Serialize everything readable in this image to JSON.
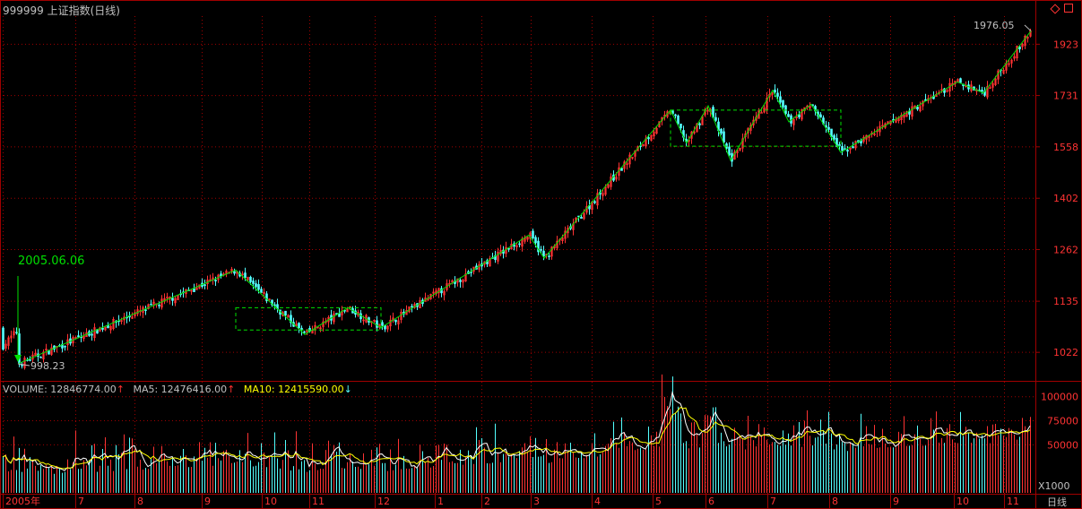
{
  "title": "999999 上证指数(日线)",
  "controls": [
    "diamond-icon",
    "square-icon"
  ],
  "colors": {
    "up": "#ff3333",
    "down": "#54ffff",
    "zig": "#00e000",
    "ma5": "#ffffff",
    "ma10": "#ffff00",
    "grid": "#a00000"
  },
  "price_axis": [
    "1923",
    "1731",
    "1558",
    "1402",
    "1262",
    "1135",
    "1022"
  ],
  "annotations": {
    "start_date": "2005.06.06",
    "low": "998.23",
    "high": "1976.05"
  },
  "volume_legend": {
    "volume_label": "VOLUME: 12846774.00",
    "ma5_label": "MA5: 12476416.00",
    "ma10_label": "MA10: 12415590.00"
  },
  "volume_axis": [
    "100000",
    "75000",
    "50000"
  ],
  "volume_unit": "X1000",
  "period": "日线",
  "time_axis": [
    "2005年",
    "7",
    "8",
    "9",
    "10",
    "11",
    "12",
    "1",
    "2",
    "3",
    "4",
    "5",
    "6",
    "7",
    "8",
    "9",
    "10",
    "11"
  ],
  "chart_data": {
    "type": "candlestick",
    "x_range": [
      "2005-06-06",
      "2006-11-30"
    ],
    "zigzag_points": [
      998.23,
      1210,
      1060,
      1120,
      1075,
      1300,
      1240,
      1680,
      1570,
      1695,
      1515,
      1750,
      1640,
      1700,
      1540,
      1780,
      1740,
      1976.05
    ],
    "consolidation_boxes": [
      {
        "low": 1070,
        "high": 1120
      },
      {
        "low": 1560,
        "high": 1680
      }
    ],
    "ylim": [
      980,
      2000
    ],
    "volume_ylim": [
      0,
      110000
    ]
  }
}
